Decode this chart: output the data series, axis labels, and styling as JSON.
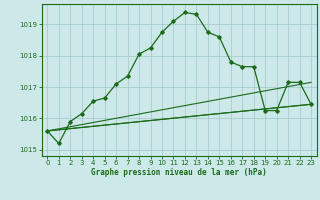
{
  "title": "Graphe pression niveau de la mer (hPa)",
  "background_color": "#cce8e8",
  "grid_color": "#a0c8c8",
  "line_color": "#1a6b1a",
  "label_bg_color": "#2a7a2a",
  "xlim": [
    -0.5,
    23.5
  ],
  "ylim": [
    1014.8,
    1019.65
  ],
  "xticks": [
    0,
    1,
    2,
    3,
    4,
    5,
    6,
    7,
    8,
    9,
    10,
    11,
    12,
    13,
    14,
    15,
    16,
    17,
    18,
    19,
    20,
    21,
    22,
    23
  ],
  "yticks": [
    1015,
    1016,
    1017,
    1018,
    1019
  ],
  "main_x": [
    0,
    1,
    2,
    3,
    4,
    5,
    6,
    7,
    8,
    9,
    10,
    11,
    12,
    13,
    14,
    15,
    16,
    17,
    18,
    19,
    20,
    21,
    22,
    23
  ],
  "main_y": [
    1015.6,
    1015.2,
    1015.9,
    1016.15,
    1016.55,
    1016.65,
    1017.1,
    1017.35,
    1018.05,
    1018.25,
    1018.75,
    1019.1,
    1019.38,
    1019.32,
    1018.75,
    1018.6,
    1017.8,
    1017.65,
    1017.65,
    1016.25,
    1016.25,
    1017.15,
    1017.15,
    1016.45
  ],
  "ref_lines": [
    {
      "x": [
        0,
        23
      ],
      "y": [
        1015.6,
        1016.45
      ]
    },
    {
      "x": [
        0,
        23
      ],
      "y": [
        1015.6,
        1017.15
      ]
    },
    {
      "x": [
        0,
        23
      ],
      "y": [
        1015.6,
        1016.45
      ]
    }
  ]
}
